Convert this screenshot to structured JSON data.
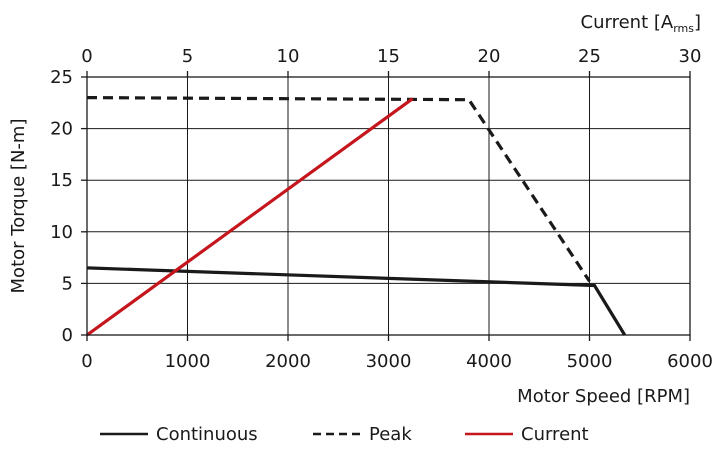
{
  "chart_data": {
    "type": "line",
    "x_axis": {
      "label": "Motor Speed [RPM]",
      "range": [
        0,
        6000
      ],
      "ticks": [
        0,
        1000,
        2000,
        3000,
        4000,
        5000,
        6000
      ]
    },
    "x2_axis": {
      "label_main": "Current [A",
      "label_sub": "rms",
      "label_end": "]",
      "range": [
        0,
        30
      ],
      "ticks": [
        0,
        5,
        10,
        15,
        20,
        25,
        30
      ]
    },
    "y_axis": {
      "label": "Motor Torque [N-m]",
      "range": [
        0,
        25
      ],
      "ticks": [
        0,
        5,
        10,
        15,
        20,
        25
      ]
    },
    "grid": true,
    "legend_position": "bottom",
    "series": [
      {
        "name": "Continuous",
        "axis": "x",
        "style": "solid",
        "color": "#1a1a1a",
        "points": [
          [
            0,
            6.5
          ],
          [
            5050,
            4.8
          ],
          [
            5350,
            0
          ]
        ]
      },
      {
        "name": "Peak",
        "axis": "x",
        "style": "dashed",
        "color": "#1a1a1a",
        "points": [
          [
            0,
            23
          ],
          [
            3800,
            22.8
          ],
          [
            5000,
            5.2
          ]
        ]
      },
      {
        "name": "Current",
        "axis": "x2",
        "style": "solid",
        "color": "#c4161c",
        "points": [
          [
            0,
            0
          ],
          [
            16.2,
            22.9
          ]
        ]
      }
    ]
  }
}
